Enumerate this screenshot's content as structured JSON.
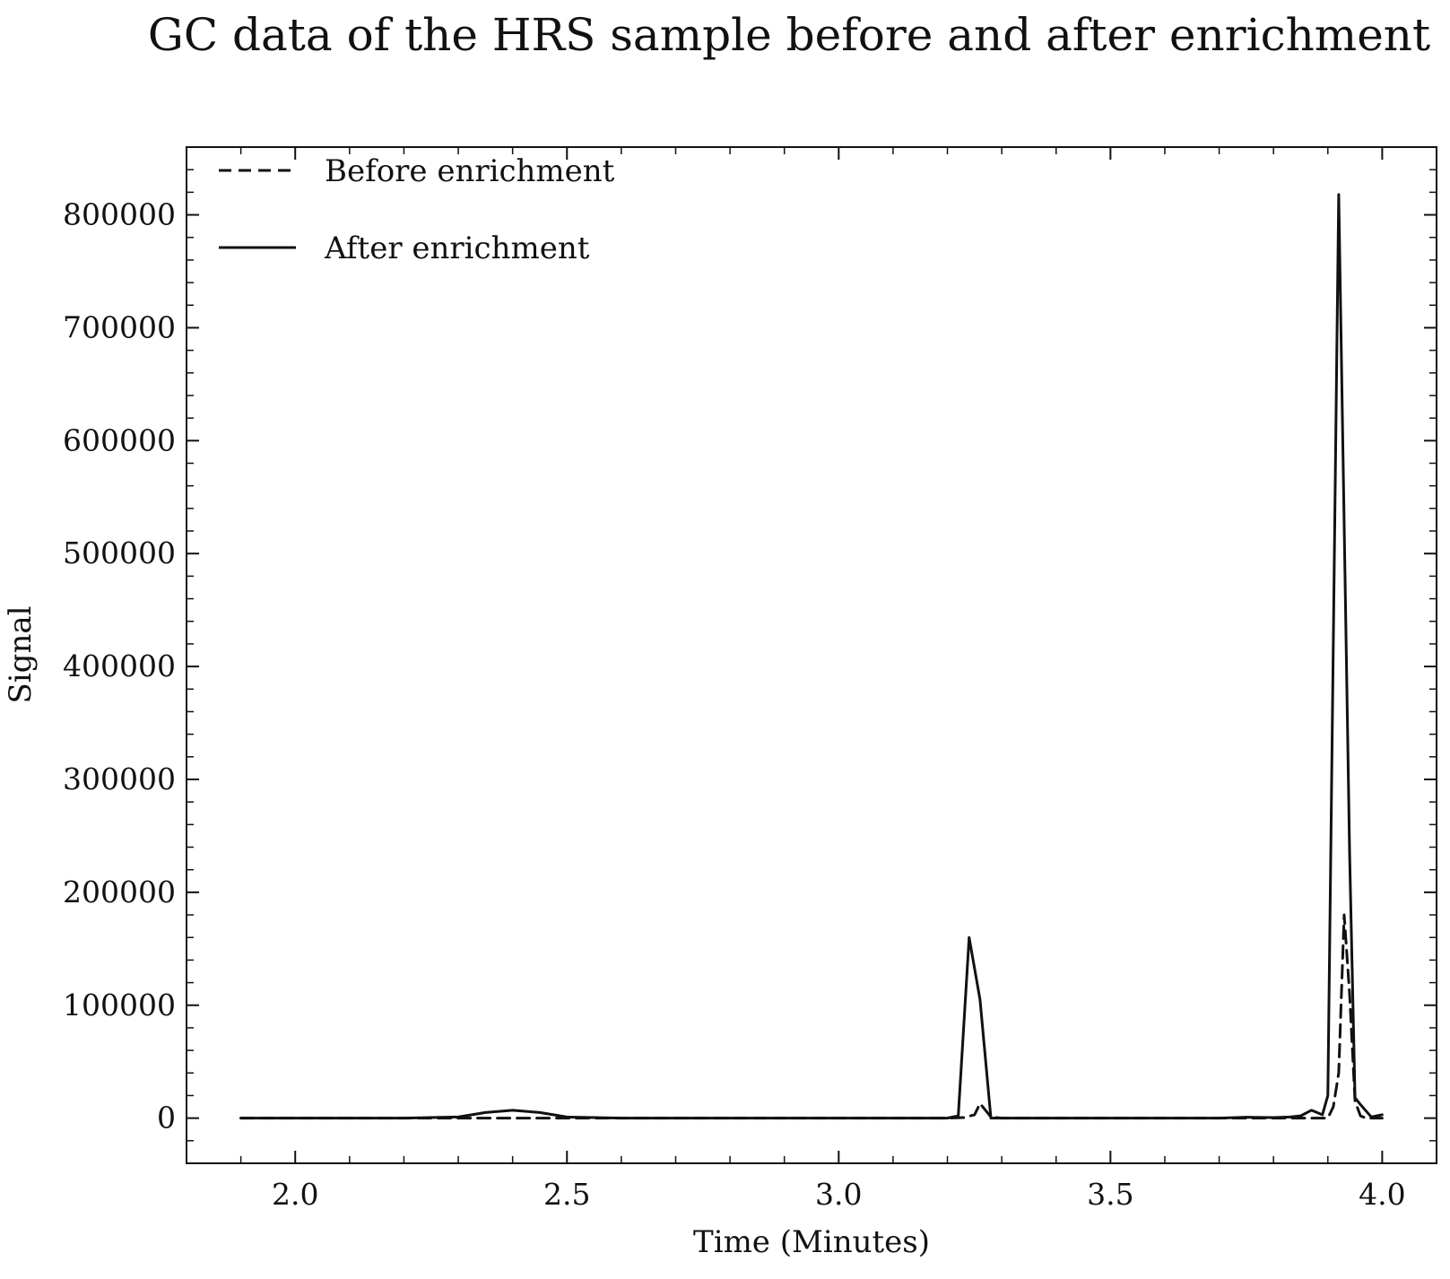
{
  "chart_data": {
    "type": "line",
    "title": "GC data of the HRS sample before and after enrichment",
    "xlabel": "Time (Minutes)",
    "ylabel": "Signal",
    "xlim": [
      1.8,
      4.1
    ],
    "ylim": [
      -40000,
      860000
    ],
    "xticks": [
      2.0,
      2.5,
      3.0,
      3.5,
      4.0
    ],
    "xtick_labels": [
      "2.0",
      "2.5",
      "3.0",
      "3.5",
      "4.0"
    ],
    "yticks": [
      0,
      100000,
      200000,
      300000,
      400000,
      500000,
      600000,
      700000,
      800000
    ],
    "ytick_labels": [
      "0",
      "100000",
      "200000",
      "300000",
      "400000",
      "500000",
      "600000",
      "700000",
      "800000"
    ],
    "grid": false,
    "legend_position": "top-left",
    "series": [
      {
        "name": "Before enrichment",
        "style": "dashed",
        "color": "#111111",
        "x": [
          1.9,
          2.5,
          3.2,
          3.23,
          3.25,
          3.26,
          3.28,
          3.3,
          3.6,
          3.8,
          3.88,
          3.9,
          3.91,
          3.92,
          3.93,
          3.94,
          3.95,
          3.96,
          3.97,
          3.98,
          4.0
        ],
        "y": [
          0,
          0,
          0,
          500,
          3000,
          13000,
          1000,
          0,
          0,
          0,
          0,
          0,
          10000,
          40000,
          180000,
          110000,
          15000,
          2000,
          0,
          0,
          0
        ]
      },
      {
        "name": "After enrichment",
        "style": "solid",
        "color": "#111111",
        "x": [
          1.9,
          2.2,
          2.3,
          2.35,
          2.4,
          2.45,
          2.5,
          2.55,
          2.6,
          3.2,
          3.22,
          3.24,
          3.26,
          3.28,
          3.3,
          3.7,
          3.75,
          3.8,
          3.83,
          3.85,
          3.87,
          3.89,
          3.9,
          3.92,
          3.94,
          3.95,
          3.96,
          3.98,
          4.0
        ],
        "y": [
          0,
          0,
          1000,
          5000,
          7000,
          5000,
          1000,
          500,
          0,
          0,
          2000,
          160000,
          105000,
          0,
          0,
          0,
          800,
          500,
          1000,
          2000,
          7000,
          3000,
          20000,
          818000,
          235000,
          18000,
          12000,
          1000,
          3000
        ]
      }
    ]
  }
}
